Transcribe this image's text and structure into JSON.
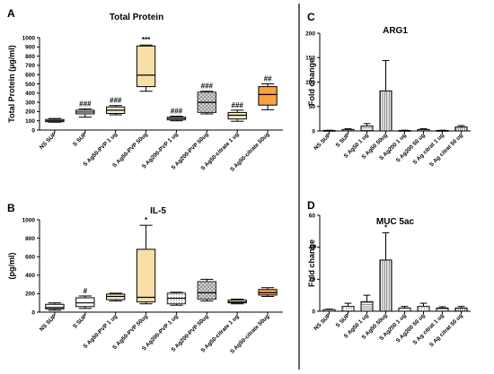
{
  "panels": [
    {
      "letter": "A",
      "title": "Total Protein",
      "type": "boxplot",
      "ylabel": "Total Protein (µg/ml)",
      "ylim": [
        0,
        1000
      ],
      "yticks": [
        "0",
        "100",
        "200",
        "300",
        "400",
        "500",
        "600",
        "700",
        "800",
        "900",
        "1000"
      ],
      "categories": [
        "NS SUP",
        "S SUP",
        "S Ag50-PVP 1 ug",
        "S Ag50-PVP 50ug",
        "S Ag200-PVP 1 ug",
        "S Ag200-PVP 50ug",
        "S Ag50-citrate 1 ug",
        "S Ag50-citrate 50ug"
      ],
      "boxes": [
        {
          "min": 85,
          "q1": 90,
          "median": 100,
          "q3": 115,
          "max": 125,
          "fill": "#ffffff",
          "pattern": "none",
          "annotation": ""
        },
        {
          "min": 140,
          "q1": 175,
          "median": 195,
          "q3": 215,
          "max": 230,
          "fill": "#ffffff",
          "pattern": "none",
          "annotation": "###"
        },
        {
          "min": 165,
          "q1": 180,
          "median": 215,
          "q3": 250,
          "max": 265,
          "fill": "#fdf1d0",
          "pattern": "none",
          "annotation": "###"
        },
        {
          "min": 420,
          "q1": 470,
          "median": 595,
          "q3": 910,
          "max": 920,
          "fill": "#f7dfa8",
          "pattern": "none",
          "annotation": "***"
        },
        {
          "min": 100,
          "q1": 110,
          "median": 125,
          "q3": 140,
          "max": 150,
          "fill": "#e0e0e0",
          "pattern": "dots",
          "annotation": "###"
        },
        {
          "min": 175,
          "q1": 190,
          "median": 300,
          "q3": 410,
          "max": 420,
          "fill": "#e0e0e0",
          "pattern": "cross",
          "annotation": "###"
        },
        {
          "min": 95,
          "q1": 120,
          "median": 160,
          "q3": 190,
          "max": 215,
          "fill": "#f7e9c0",
          "pattern": "none",
          "annotation": "###"
        },
        {
          "min": 220,
          "q1": 270,
          "median": 385,
          "q3": 470,
          "max": 500,
          "fill": "#f7a440",
          "pattern": "none",
          "annotation": "##"
        }
      ]
    },
    {
      "letter": "B",
      "title": "IL-5",
      "type": "boxplot",
      "ylabel": "(pg/ml)",
      "ylim": [
        0,
        1000
      ],
      "yticks": [
        "0",
        "200",
        "400",
        "600",
        "800",
        "1000"
      ],
      "categories": [
        "NS SUP",
        "S SUP",
        "S Ag50-PVP 1 ug",
        "S Ag50-PVP 50ug",
        "S Ag200-PVP 1 ug",
        "S Ag200-PVP 50ug",
        "S Ag50-citrate 1 ug",
        "S Ag50-citrate 50ug"
      ],
      "boxes": [
        {
          "min": 20,
          "q1": 35,
          "median": 50,
          "q3": 85,
          "max": 100,
          "fill": "#ffffff",
          "pattern": "none",
          "annotation": ""
        },
        {
          "min": 40,
          "q1": 60,
          "median": 100,
          "q3": 155,
          "max": 175,
          "fill": "#ffffff",
          "pattern": "none",
          "annotation": "#"
        },
        {
          "min": 120,
          "q1": 135,
          "median": 170,
          "q3": 195,
          "max": 205,
          "fill": "#fdf1d0",
          "pattern": "none",
          "annotation": ""
        },
        {
          "min": 90,
          "q1": 110,
          "median": 160,
          "q3": 680,
          "max": 940,
          "fill": "#f7dfa8",
          "pattern": "none",
          "annotation": "*"
        },
        {
          "min": 75,
          "q1": 90,
          "median": 150,
          "q3": 205,
          "max": 215,
          "fill": "#e0e0e0",
          "pattern": "dots",
          "annotation": ""
        },
        {
          "min": 120,
          "q1": 140,
          "median": 210,
          "q3": 330,
          "max": 355,
          "fill": "#e0e0e0",
          "pattern": "cross",
          "annotation": ""
        },
        {
          "min": 90,
          "q1": 100,
          "median": 110,
          "q3": 130,
          "max": 140,
          "fill": "#f7e9c0",
          "pattern": "none",
          "annotation": ""
        },
        {
          "min": 170,
          "q1": 185,
          "median": 210,
          "q3": 245,
          "max": 265,
          "fill": "#f7a440",
          "pattern": "none",
          "annotation": ""
        }
      ]
    },
    {
      "letter": "C",
      "title": "ARG1",
      "type": "bar",
      "ylabel": "Fold change",
      "ylim": [
        0,
        200
      ],
      "yticks": [
        "0",
        "50",
        "100",
        "150",
        "200"
      ],
      "categories": [
        "NS SUP",
        "S SUP",
        "S Ag50 1 ug",
        "S Ag50 50ug",
        "S Ag200 1 ug",
        "S Ag200 50 ug",
        "S Ag citrat 1 ug",
        "S Ag citrat 50 ug"
      ],
      "values": [
        1,
        3,
        10,
        82,
        1,
        3,
        1,
        8
      ],
      "errors": [
        0.5,
        1.5,
        5,
        62,
        0.5,
        1.5,
        0.5,
        3
      ],
      "patterns": [
        "none",
        "dots",
        "hlines",
        "vlines",
        "none",
        "dots",
        "hlines",
        "vlines"
      ],
      "annotations": [
        "",
        "",
        "",
        "",
        "",
        "",
        "",
        ""
      ]
    },
    {
      "letter": "D",
      "title": "MUC 5ac",
      "type": "bar",
      "ylabel": "Fold change",
      "ylim": [
        0,
        60
      ],
      "yticks": [
        "0",
        "20",
        "40",
        "60"
      ],
      "categories": [
        "NS SUP",
        "S SUP",
        "S Ag50 1 ug",
        "S Ag50 50ug",
        "S Ag200 1 ug",
        "S Ag200 50 ug",
        "S Ag citrat 1 ug",
        "S Ag citrat 50 ug"
      ],
      "values": [
        1,
        3,
        6,
        32,
        2,
        3,
        2,
        2
      ],
      "errors": [
        0.3,
        2,
        4,
        17,
        1,
        2,
        0.8,
        1
      ],
      "patterns": [
        "none",
        "dots",
        "hlines",
        "vlines",
        "none",
        "dots",
        "hlines",
        "vlines"
      ],
      "annotations": [
        "",
        "",
        "",
        "*",
        "",
        "",
        "",
        ""
      ]
    }
  ],
  "chart_data": [
    {
      "type": "boxplot",
      "title": "Total Protein",
      "ylabel": "Total Protein (µg/ml)",
      "ylim": [
        0,
        1000
      ],
      "categories": [
        "NS SUP",
        "S SUP",
        "S Ag50-PVP 1 ug",
        "S Ag50-PVP 50ug",
        "S Ag200-PVP 1 ug",
        "S Ag200-PVP 50ug",
        "S Ag50-citrate 1 ug",
        "S Ag50-citrate 50ug"
      ],
      "min": [
        85,
        140,
        165,
        420,
        100,
        175,
        95,
        220
      ],
      "q1": [
        90,
        175,
        180,
        470,
        110,
        190,
        120,
        270
      ],
      "median": [
        100,
        195,
        215,
        595,
        125,
        300,
        160,
        385
      ],
      "q3": [
        115,
        215,
        250,
        910,
        140,
        410,
        190,
        470
      ],
      "max": [
        125,
        230,
        265,
        920,
        150,
        420,
        215,
        500
      ],
      "annotations": [
        "",
        "###",
        "###",
        "***",
        "###",
        "###",
        "###",
        "##"
      ],
      "grid": false
    },
    {
      "type": "boxplot",
      "title": "IL-5",
      "ylabel": "(pg/ml)",
      "ylim": [
        0,
        1000
      ],
      "categories": [
        "NS SUP",
        "S SUP",
        "S Ag50-PVP 1 ug",
        "S Ag50-PVP 50ug",
        "S Ag200-PVP 1 ug",
        "S Ag200-PVP 50ug",
        "S Ag50-citrate 1 ug",
        "S Ag50-citrate 50ug"
      ],
      "min": [
        20,
        40,
        120,
        90,
        75,
        120,
        90,
        170
      ],
      "q1": [
        35,
        60,
        135,
        110,
        90,
        140,
        100,
        185
      ],
      "median": [
        50,
        100,
        170,
        160,
        150,
        210,
        110,
        210
      ],
      "q3": [
        85,
        155,
        195,
        680,
        205,
        330,
        130,
        245
      ],
      "max": [
        100,
        175,
        205,
        940,
        215,
        355,
        140,
        265
      ],
      "annotations": [
        "",
        "#",
        "",
        "*",
        "",
        "",
        "",
        ""
      ],
      "grid": false
    },
    {
      "type": "bar",
      "title": "ARG1",
      "ylabel": "Fold change",
      "ylim": [
        0,
        200
      ],
      "categories": [
        "NS SUP",
        "S SUP",
        "S Ag50 1 ug",
        "S Ag50 50ug",
        "S Ag200 1 ug",
        "S Ag200 50 ug",
        "S Ag citrat 1 ug",
        "S Ag citrat 50 ug"
      ],
      "values": [
        1,
        3,
        10,
        82,
        1,
        3,
        1,
        8
      ],
      "errors": [
        0.5,
        1.5,
        5,
        62,
        0.5,
        1.5,
        0.5,
        3
      ],
      "grid": false
    },
    {
      "type": "bar",
      "title": "MUC 5ac",
      "ylabel": "Fold change",
      "ylim": [
        0,
        60
      ],
      "categories": [
        "NS SUP",
        "S SUP",
        "S Ag50 1 ug",
        "S Ag50 50ug",
        "S Ag200 1 ug",
        "S Ag200 50 ug",
        "S Ag citrat 1 ug",
        "S Ag citrat 50 ug"
      ],
      "values": [
        1,
        3,
        6,
        32,
        2,
        3,
        2,
        2
      ],
      "errors": [
        0.3,
        2,
        4,
        17,
        1,
        2,
        0.8,
        1
      ],
      "annotations": [
        "",
        "",
        "",
        "*",
        "",
        "",
        "",
        ""
      ],
      "grid": false
    }
  ]
}
